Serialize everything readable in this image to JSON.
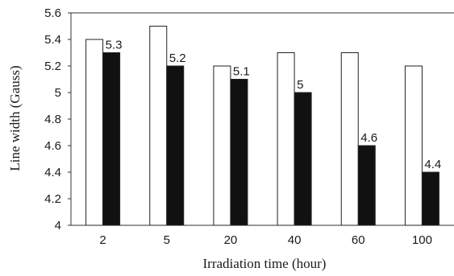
{
  "chart_data": {
    "type": "bar",
    "xlabel": "Irradiation time (hour)",
    "ylabel": "Line width (Gauss)",
    "categories": [
      "2",
      "5",
      "20",
      "40",
      "60",
      "100"
    ],
    "series": [
      {
        "values": [
          5.4,
          5.5,
          5.2,
          5.3,
          5.3,
          5.2
        ],
        "fill": "#ffffff"
      },
      {
        "values": [
          5.3,
          5.2,
          5.1,
          5.0,
          4.6,
          4.4
        ],
        "fill": "#111111"
      }
    ],
    "data_labels": [
      "5.3",
      "5.2",
      "5.1",
      "5",
      "4.6",
      "4.4"
    ],
    "ylim": [
      4,
      5.6
    ],
    "yticks": [
      "4",
      "4.2",
      "4.4",
      "4.6",
      "4.8",
      "5",
      "5.2",
      "5.4",
      "5.6"
    ],
    "grid": false,
    "legend": "none"
  }
}
